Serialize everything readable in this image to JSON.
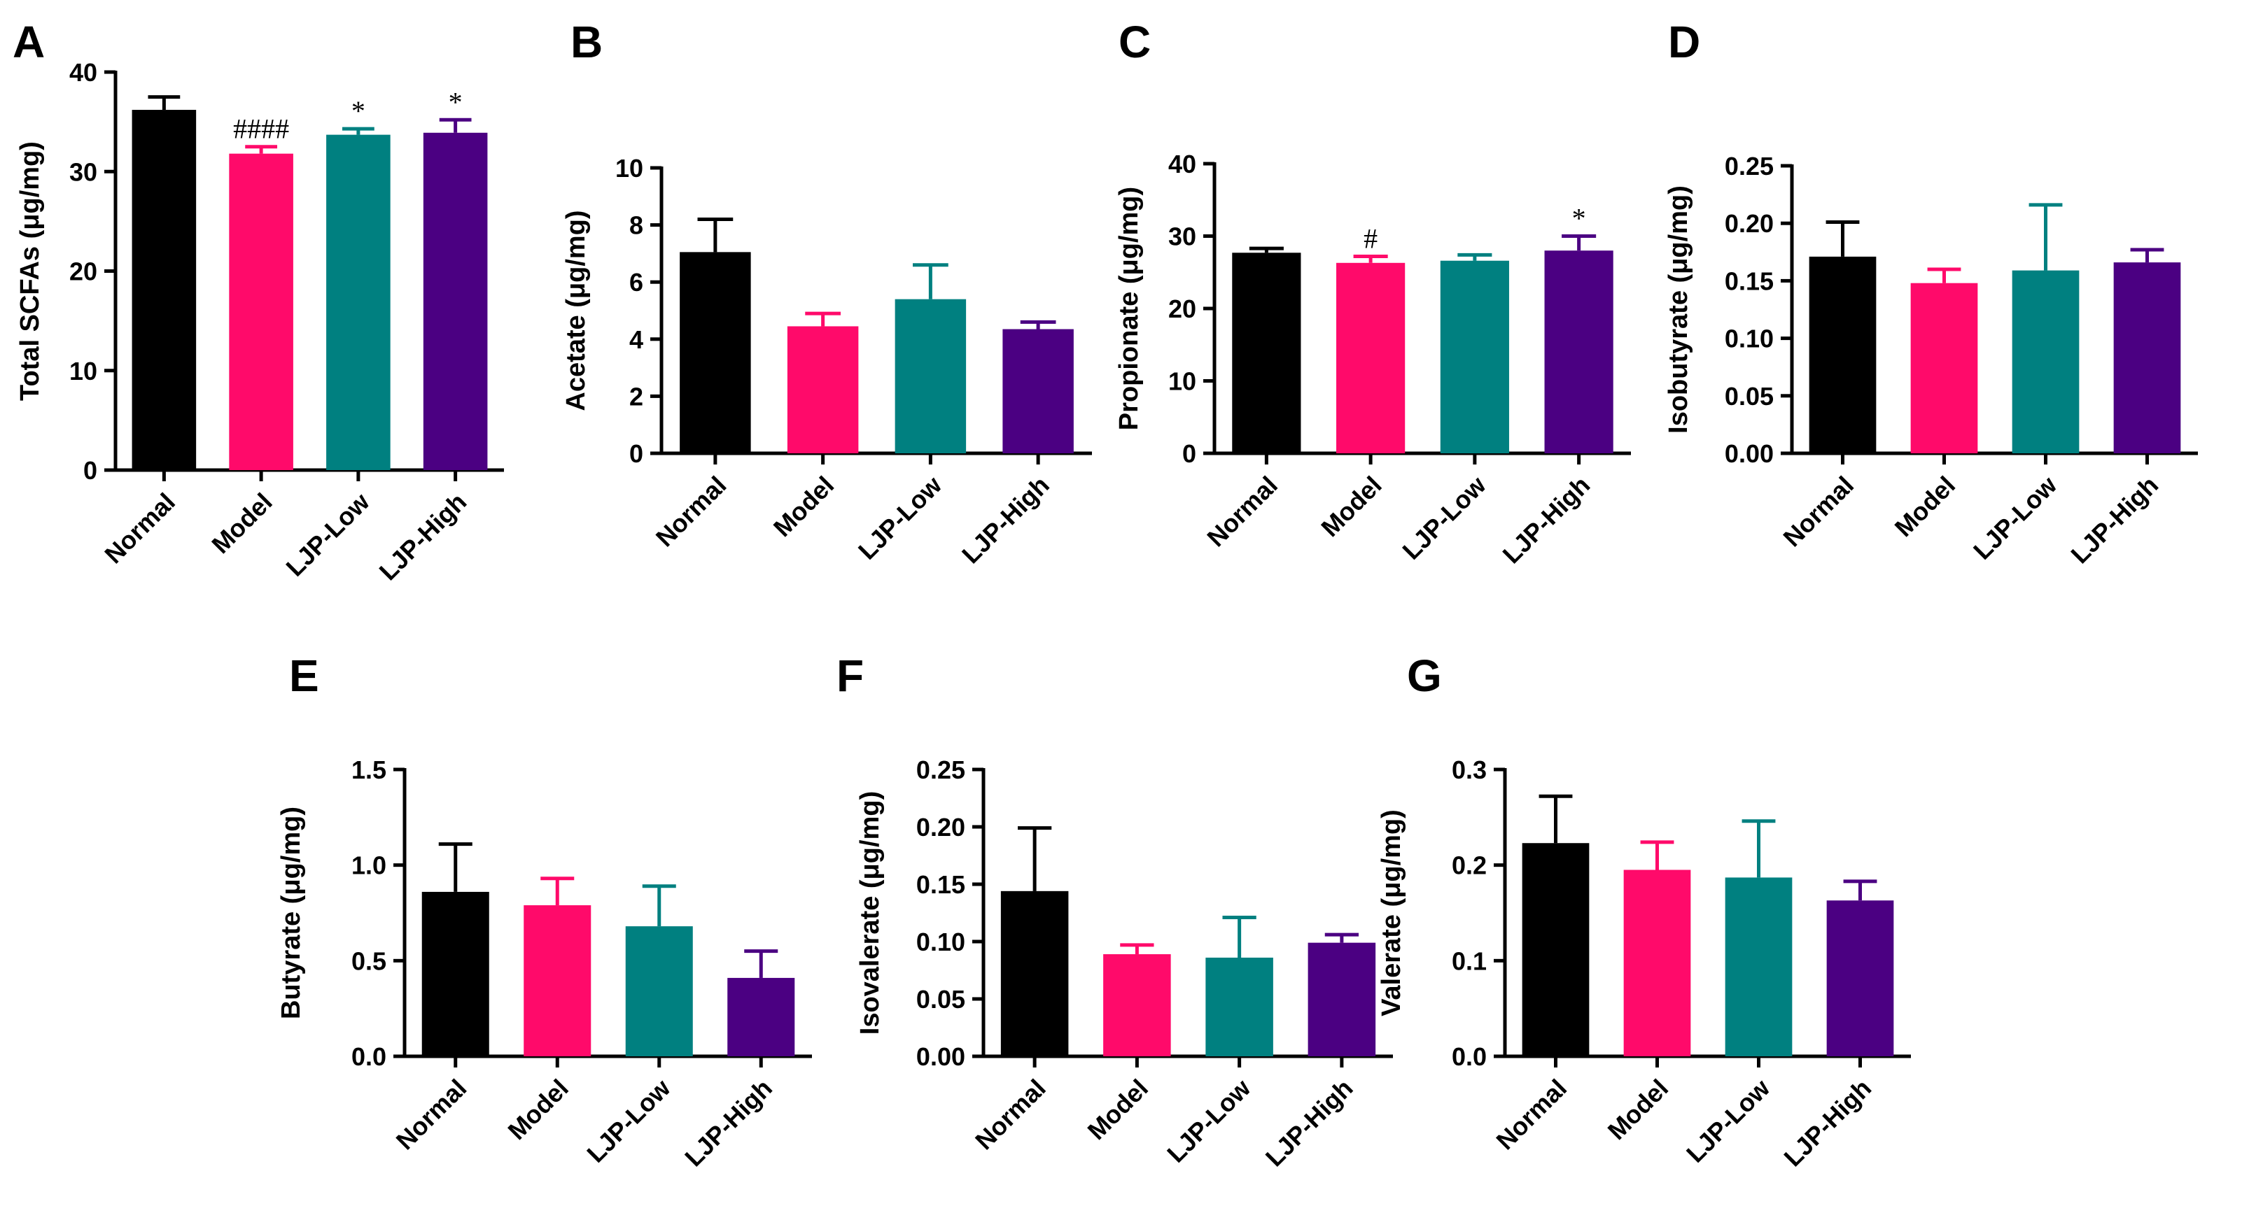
{
  "colors": {
    "Normal": "#000000",
    "Model": "#ff0a6a",
    "LJP-Low": "#008080",
    "LJP-High": "#4b0082"
  },
  "chart_data": [
    {
      "panel": "A",
      "type": "bar",
      "categories": [
        "Normal",
        "Model",
        "LJP-Low",
        "LJP-High"
      ],
      "values": [
        36.2,
        31.8,
        33.7,
        33.9
      ],
      "errors": [
        1.3,
        0.7,
        0.6,
        1.3
      ],
      "significance": [
        "",
        "####",
        "*",
        "*"
      ],
      "title": "",
      "xlabel": "",
      "ylabel": "Total SCFAs (μg/mg)",
      "ylim": [
        0,
        40
      ],
      "yticks": [
        "0",
        "10",
        "20",
        "30",
        "40"
      ]
    },
    {
      "panel": "B",
      "type": "bar",
      "categories": [
        "Normal",
        "Model",
        "LJP-Low",
        "LJP-High"
      ],
      "values": [
        7.05,
        4.45,
        5.4,
        4.35
      ],
      "errors": [
        1.15,
        0.45,
        1.2,
        0.25
      ],
      "significance": [
        "",
        "",
        "",
        ""
      ],
      "title": "",
      "xlabel": "",
      "ylabel": "Acetate (μg/mg)",
      "ylim": [
        0,
        10
      ],
      "yticks": [
        "0",
        "2",
        "4",
        "6",
        "8",
        "10"
      ]
    },
    {
      "panel": "C",
      "type": "bar",
      "categories": [
        "Normal",
        "Model",
        "LJP-Low",
        "LJP-High"
      ],
      "values": [
        27.7,
        26.3,
        26.6,
        28.0
      ],
      "errors": [
        0.6,
        0.9,
        0.8,
        2.0
      ],
      "significance": [
        "",
        "#",
        "",
        "*"
      ],
      "title": "",
      "xlabel": "",
      "ylabel": "Propionate (μg/mg)",
      "ylim": [
        0,
        40
      ],
      "yticks": [
        "0",
        "10",
        "20",
        "30",
        "40"
      ]
    },
    {
      "panel": "D",
      "type": "bar",
      "categories": [
        "Normal",
        "Model",
        "LJP-Low",
        "LJP-High"
      ],
      "values": [
        0.171,
        0.148,
        0.159,
        0.166
      ],
      "errors": [
        0.03,
        0.012,
        0.057,
        0.011
      ],
      "significance": [
        "",
        "",
        "",
        ""
      ],
      "title": "",
      "xlabel": "",
      "ylabel": "Isobutyrate (μg/mg)",
      "ylim": [
        0,
        0.25
      ],
      "yticks": [
        "0.00",
        "0.05",
        "0.10",
        "0.15",
        "0.20",
        "0.25"
      ]
    },
    {
      "panel": "E",
      "type": "bar",
      "categories": [
        "Normal",
        "Model",
        "LJP-Low",
        "LJP-High"
      ],
      "values": [
        0.86,
        0.79,
        0.68,
        0.41
      ],
      "errors": [
        0.25,
        0.14,
        0.21,
        0.14
      ],
      "significance": [
        "",
        "",
        "",
        ""
      ],
      "title": "",
      "xlabel": "",
      "ylabel": "Butyrate (μg/mg)",
      "ylim": [
        0,
        1.5
      ],
      "yticks": [
        "0.0",
        "0.5",
        "1.0",
        "1.5"
      ]
    },
    {
      "panel": "F",
      "type": "bar",
      "categories": [
        "Normal",
        "Model",
        "LJP-Low",
        "LJP-High"
      ],
      "values": [
        0.144,
        0.089,
        0.086,
        0.099
      ],
      "errors": [
        0.055,
        0.008,
        0.035,
        0.007
      ],
      "significance": [
        "",
        "",
        "",
        ""
      ],
      "title": "",
      "xlabel": "",
      "ylabel": "Isovalerate (μg/mg)",
      "ylim": [
        0,
        0.25
      ],
      "yticks": [
        "0.00",
        "0.05",
        "0.10",
        "0.15",
        "0.20",
        "0.25"
      ]
    },
    {
      "panel": "G",
      "type": "bar",
      "categories": [
        "Normal",
        "Model",
        "LJP-Low",
        "LJP-High"
      ],
      "values": [
        0.223,
        0.195,
        0.187,
        0.163
      ],
      "errors": [
        0.049,
        0.029,
        0.059,
        0.02
      ],
      "significance": [
        "",
        "",
        "",
        ""
      ],
      "title": "",
      "xlabel": "",
      "ylabel": "Valerate (μg/mg)",
      "ylim": [
        0,
        0.3
      ],
      "yticks": [
        "0.0",
        "0.1",
        "0.2",
        "0.3"
      ]
    }
  ]
}
